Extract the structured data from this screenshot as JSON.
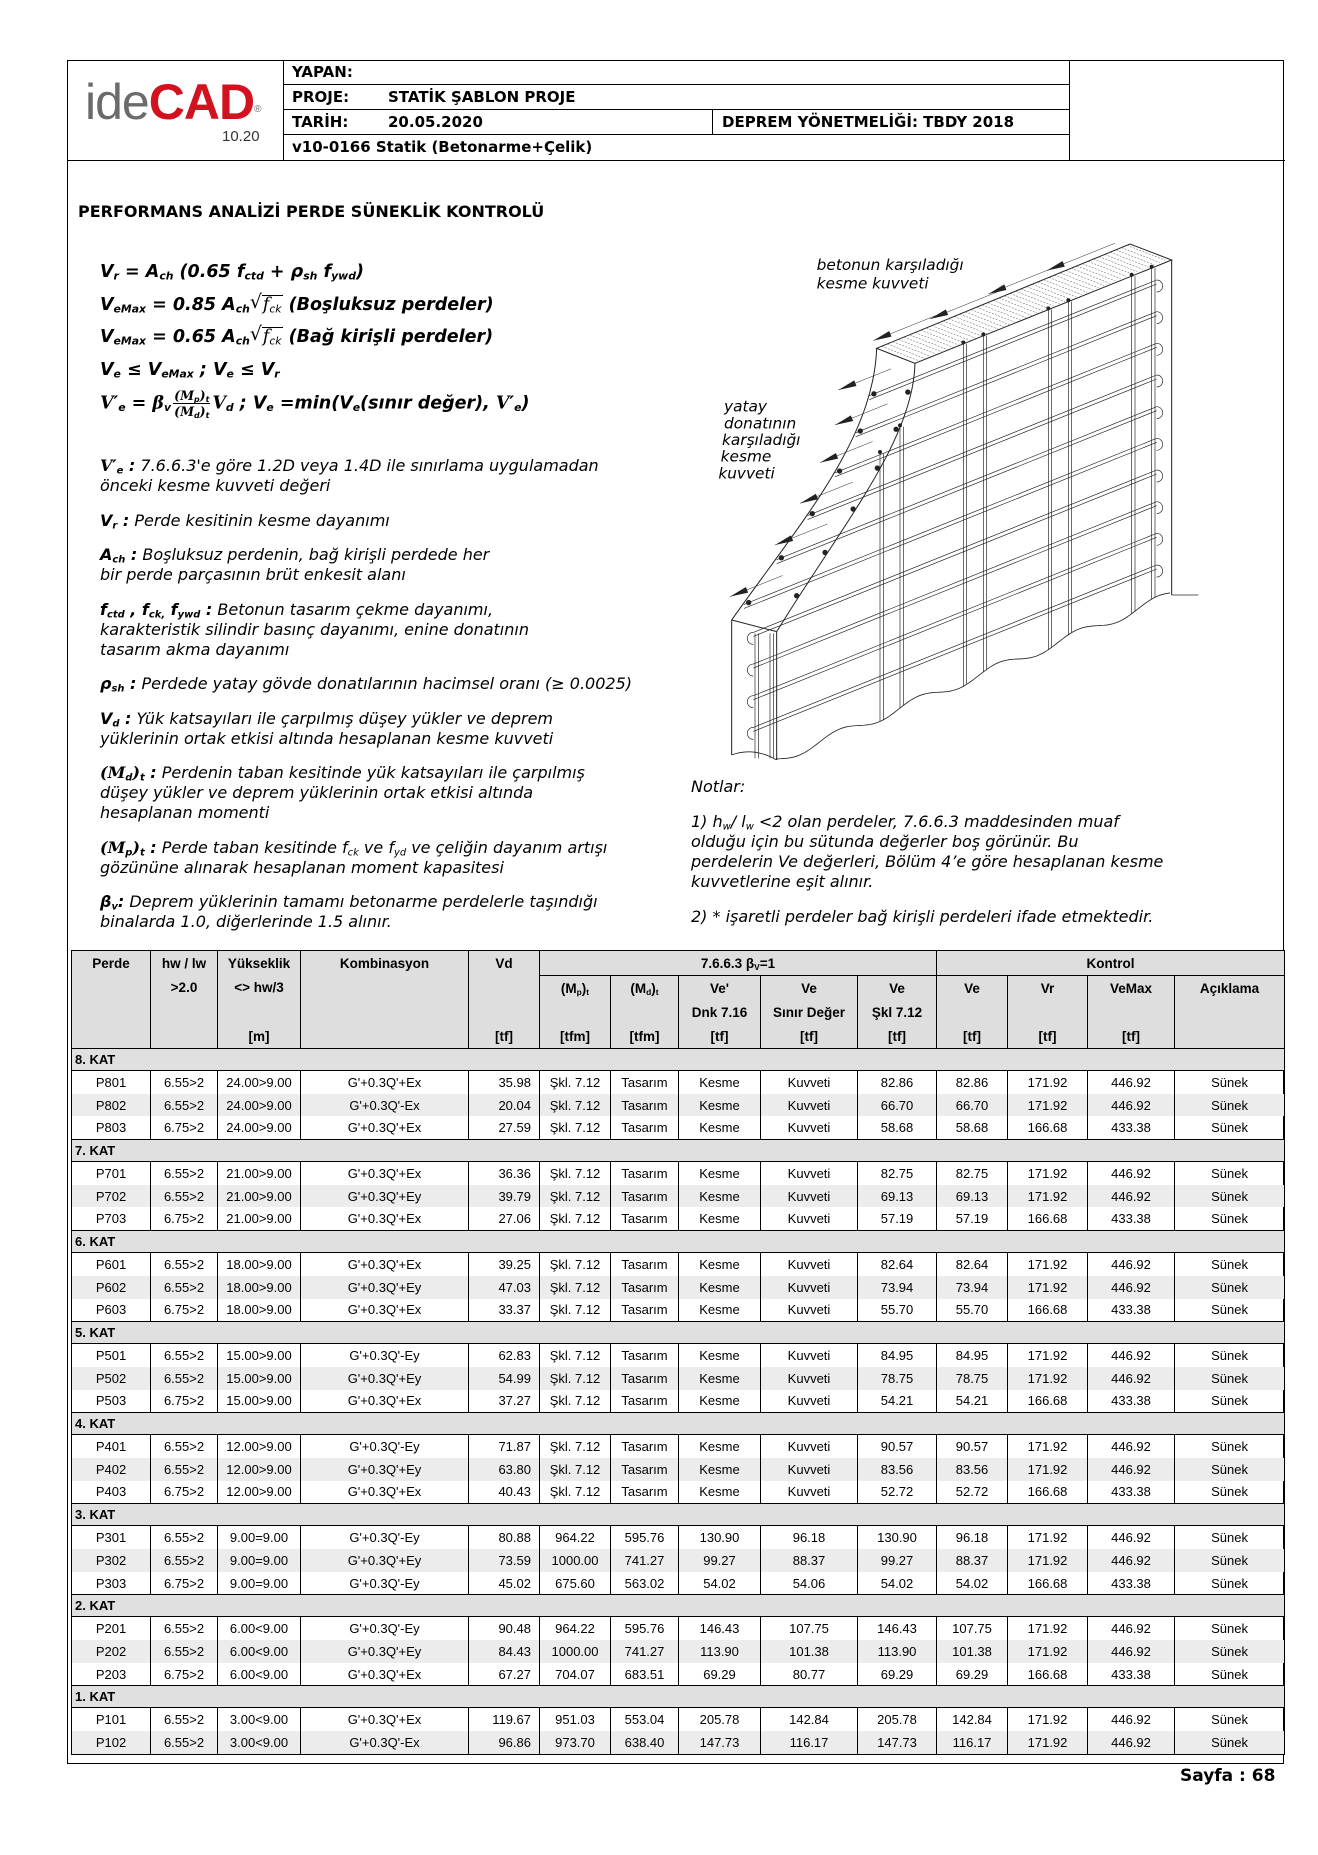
{
  "header": {
    "logo": {
      "text_a": "ide",
      "text_b": "CAD",
      "reg": "®",
      "version": "10.20"
    },
    "yapan_label": "YAPAN:",
    "proje_label": "PROJE:",
    "proje_value": "STATİK ŞABLON PROJE",
    "tarih_label": "TARİH:",
    "tarih_value": "20.05.2020",
    "deprem": "DEPREM YÖNETMELİĞİ: TBDY 2018",
    "version": "v10-0166 Statik (Betonarme+Çelik)"
  },
  "title": "PERFORMANS ANALİZİ PERDE SÜNEKLİK KONTROLÜ",
  "formulas": [
    [
      {
        "t": "V"
      },
      {
        "b": "r"
      },
      {
        "t": " = A"
      },
      {
        "b": "ch"
      },
      {
        "t": " (0.65 f"
      },
      {
        "b": "ctd"
      },
      {
        "t": " + ρ"
      },
      {
        "b": "sh"
      },
      {
        "t": " f"
      },
      {
        "b": "ywd"
      },
      {
        "t": ")"
      }
    ],
    [
      {
        "t": "V"
      },
      {
        "b": "eMax"
      },
      {
        "t": " = 0.85 A"
      },
      {
        "b": "ch"
      },
      {
        "r": [
          {
            "m": "f"
          },
          {
            "b": "ck"
          }
        ]
      },
      {
        "t": " (Boşluksuz perdeler)"
      }
    ],
    [
      {
        "t": "V"
      },
      {
        "b": "eMax"
      },
      {
        "t": " = 0.65 A"
      },
      {
        "b": "ch"
      },
      {
        "r": [
          {
            "m": "f"
          },
          {
            "b": "ck"
          }
        ]
      },
      {
        "t": " (Bağ kirişli perdeler)"
      }
    ],
    [
      {
        "t": "V"
      },
      {
        "b": "e"
      },
      {
        "t": " ≤ V"
      },
      {
        "b": "eMax"
      },
      {
        "t": " ; V"
      },
      {
        "b": "e"
      },
      {
        "t": " ≤ V"
      },
      {
        "b": "r"
      }
    ],
    [
      {
        "m": "V′"
      },
      {
        "b": "e"
      },
      {
        "t": " = "
      },
      {
        "m": "β"
      },
      {
        "b": "v"
      },
      {
        "f": [
          [
            {
              "m": "(M"
            },
            {
              "b": "p"
            },
            {
              "m": ")"
            },
            {
              "b": "t"
            }
          ],
          [
            {
              "m": "(M"
            },
            {
              "b": "d"
            },
            {
              "m": ")"
            },
            {
              "b": "t"
            }
          ]
        ]
      },
      {
        "m": "V"
      },
      {
        "b": "d"
      },
      {
        "t": " ; V"
      },
      {
        "b": "e"
      },
      {
        "t": " =min(V"
      },
      {
        "b": "e"
      },
      {
        "t": "(sınır değer), "
      },
      {
        "m": "V′"
      },
      {
        "b": "e"
      },
      {
        "t": ")"
      }
    ]
  ],
  "definitions": [
    {
      "term": [
        {
          "m": "V′"
        },
        {
          "b": "e"
        },
        {
          "t": " :"
        }
      ],
      "desc": [
        {
          "t": " 7.6.6.3'e göre 1.2D veya 1.4D ile sınırlama uygulamadan\nönceki kesme kuvveti değeri"
        }
      ]
    },
    {
      "term": [
        {
          "t": "V"
        },
        {
          "b": "r"
        },
        {
          "t": " :"
        }
      ],
      "desc": [
        {
          "t": " Perde kesitinin kesme dayanımı"
        }
      ]
    },
    {
      "term": [
        {
          "t": "A"
        },
        {
          "b": "ch"
        },
        {
          "t": " :"
        }
      ],
      "desc": [
        {
          "t": "  Boşluksuz perdenin, bağ kirişli perdede her\nbir perde parçasının brüt enkesit alanı"
        }
      ]
    },
    {
      "term": [
        {
          "t": "f"
        },
        {
          "b": "ctd"
        },
        {
          "t": " , f"
        },
        {
          "b": "ck,"
        },
        {
          "t": " f"
        },
        {
          "b": "ywd"
        },
        {
          "t": " :"
        }
      ],
      "desc": [
        {
          "t": " Betonun tasarım çekme dayanımı,\nkarakteristik silindir basınç dayanımı, enine donatının\ntasarım akma dayanımı"
        }
      ]
    },
    {
      "term": [
        {
          "t": "ρ"
        },
        {
          "b": "sh"
        },
        {
          "t": " :"
        }
      ],
      "desc": [
        {
          "t": " Perdede yatay gövde donatılarının hacimsel oranı (≥ 0.0025)"
        }
      ]
    },
    {
      "term": [
        {
          "t": "V"
        },
        {
          "b": "d"
        },
        {
          "t": " :"
        }
      ],
      "desc": [
        {
          "t": " Yük katsayıları ile çarpılmış düşey yükler ve deprem\nyüklerinin ortak etkisi altında hesaplanan kesme kuvveti"
        }
      ]
    },
    {
      "term": [
        {
          "m": "(M"
        },
        {
          "b": "d"
        },
        {
          "m": ")"
        },
        {
          "b": "t"
        },
        {
          "t": " :"
        }
      ],
      "desc": [
        {
          "t": " Perdenin taban kesitinde yük katsayıları ile çarpılmış\ndüşey yükler ve deprem yüklerinin ortak etkisi altında\nhesaplanan momenti"
        }
      ]
    },
    {
      "term": [
        {
          "m": "(M"
        },
        {
          "b": "p"
        },
        {
          "m": ")"
        },
        {
          "b": "t"
        },
        {
          "t": " :"
        }
      ],
      "desc": [
        {
          "t": " Perde taban kesitinde f"
        },
        {
          "b": "ck"
        },
        {
          "t": "  ve f"
        },
        {
          "b": "yd"
        },
        {
          "t": " ve çeliğin dayanım artışı\ngözününe alınarak hesaplanan moment kapasitesi"
        }
      ]
    },
    {
      "term": [
        {
          "t": "β"
        },
        {
          "b": "v"
        },
        {
          "t": ":"
        }
      ],
      "desc": [
        {
          "t": " Deprem yüklerinin tamamı betonarme perdelerle taşındığı\nbinalarda 1.0, diğerlerinde 1.5 alınır."
        }
      ]
    }
  ],
  "figure": {
    "label_concrete": [
      "betonun karşıladığı",
      "kesme kuvveti"
    ],
    "label_rebar": [
      "yatay",
      "donatının",
      "karşıladığı",
      "kesme",
      "kuvveti"
    ]
  },
  "notes": {
    "title": "Notlar:",
    "items": [
      [
        {
          "t": "1) h"
        },
        {
          "b": "w"
        },
        {
          "t": "/ l"
        },
        {
          "b": "w"
        },
        {
          "t": " <2 olan perdeler, 7.6.6.3 maddesinden muaf\nolduğu için bu sütunda değerler boş görünür. Bu\nperdelerin Ve değerleri, Bölüm 4’e göre hesaplanan kesme\nkuvvetlerine eşit alınır."
        }
      ],
      [
        {
          "t": "2) * işaretli perdeler bağ kirişli perdeleri ifade etmektedir."
        }
      ]
    ]
  },
  "table": {
    "group_7663": [
      {
        "t": "7.6.6.3 β"
      },
      {
        "b": "V"
      },
      {
        "t": "=1"
      }
    ],
    "group_kontrol": "Kontrol",
    "columns": [
      [
        "Perde",
        "",
        "",
        ""
      ],
      [
        "hw / lw",
        ">2.0",
        "",
        ""
      ],
      [
        "Yükseklik",
        "<> hw/3",
        "",
        "[m]"
      ],
      [
        "Kombinasyon",
        "",
        "",
        ""
      ],
      [
        "Vd",
        "",
        "",
        "[tf]"
      ],
      [
        "",
        [
          {
            "t": "(M"
          },
          {
            "b": "p"
          },
          {
            "t": ")"
          },
          {
            "b": "t"
          }
        ],
        "",
        "[tfm]"
      ],
      [
        "",
        [
          {
            "t": "(M"
          },
          {
            "b": "d"
          },
          {
            "t": ")"
          },
          {
            "b": "t"
          }
        ],
        "",
        "[tfm]"
      ],
      [
        "",
        "Ve'",
        "Dnk 7.16",
        "[tf]"
      ],
      [
        "",
        "Ve",
        "Sınır Değer",
        "[tf]"
      ],
      [
        "",
        "Ve",
        "Şkl 7.12",
        "[tf]"
      ],
      [
        "",
        "Ve",
        "",
        "[tf]"
      ],
      [
        "",
        "Vr",
        "",
        "[tf]"
      ],
      [
        "",
        "VeMax",
        "",
        "[tf]"
      ],
      [
        "",
        "Açıklama",
        "",
        ""
      ]
    ],
    "groups": [
      {
        "label": "8. KAT",
        "rows": [
          [
            "P801",
            "6.55>2",
            "24.00>9.00",
            "G'+0.3Q'+Ex",
            "35.98",
            "Şkl. 7.12",
            "Tasarım",
            "Kesme",
            "Kuvveti",
            "82.86",
            "82.86",
            "171.92",
            "446.92",
            "Sünek"
          ],
          [
            "P802",
            "6.55>2",
            "24.00>9.00",
            "G'+0.3Q'-Ex",
            "20.04",
            "Şkl. 7.12",
            "Tasarım",
            "Kesme",
            "Kuvveti",
            "66.70",
            "66.70",
            "171.92",
            "446.92",
            "Sünek"
          ],
          [
            "P803",
            "6.75>2",
            "24.00>9.00",
            "G'+0.3Q'+Ex",
            "27.59",
            "Şkl. 7.12",
            "Tasarım",
            "Kesme",
            "Kuvveti",
            "58.68",
            "58.68",
            "166.68",
            "433.38",
            "Sünek"
          ]
        ]
      },
      {
        "label": "7. KAT",
        "rows": [
          [
            "P701",
            "6.55>2",
            "21.00>9.00",
            "G'+0.3Q'+Ex",
            "36.36",
            "Şkl. 7.12",
            "Tasarım",
            "Kesme",
            "Kuvveti",
            "82.75",
            "82.75",
            "171.92",
            "446.92",
            "Sünek"
          ],
          [
            "P702",
            "6.55>2",
            "21.00>9.00",
            "G'+0.3Q'+Ey",
            "39.79",
            "Şkl. 7.12",
            "Tasarım",
            "Kesme",
            "Kuvveti",
            "69.13",
            "69.13",
            "171.92",
            "446.92",
            "Sünek"
          ],
          [
            "P703",
            "6.75>2",
            "21.00>9.00",
            "G'+0.3Q'+Ex",
            "27.06",
            "Şkl. 7.12",
            "Tasarım",
            "Kesme",
            "Kuvveti",
            "57.19",
            "57.19",
            "166.68",
            "433.38",
            "Sünek"
          ]
        ]
      },
      {
        "label": "6. KAT",
        "rows": [
          [
            "P601",
            "6.55>2",
            "18.00>9.00",
            "G'+0.3Q'+Ex",
            "39.25",
            "Şkl. 7.12",
            "Tasarım",
            "Kesme",
            "Kuvveti",
            "82.64",
            "82.64",
            "171.92",
            "446.92",
            "Sünek"
          ],
          [
            "P602",
            "6.55>2",
            "18.00>9.00",
            "G'+0.3Q'+Ey",
            "47.03",
            "Şkl. 7.12",
            "Tasarım",
            "Kesme",
            "Kuvveti",
            "73.94",
            "73.94",
            "171.92",
            "446.92",
            "Sünek"
          ],
          [
            "P603",
            "6.75>2",
            "18.00>9.00",
            "G'+0.3Q'+Ex",
            "33.37",
            "Şkl. 7.12",
            "Tasarım",
            "Kesme",
            "Kuvveti",
            "55.70",
            "55.70",
            "166.68",
            "433.38",
            "Sünek"
          ]
        ]
      },
      {
        "label": "5. KAT",
        "rows": [
          [
            "P501",
            "6.55>2",
            "15.00>9.00",
            "G'+0.3Q'-Ey",
            "62.83",
            "Şkl. 7.12",
            "Tasarım",
            "Kesme",
            "Kuvveti",
            "84.95",
            "84.95",
            "171.92",
            "446.92",
            "Sünek"
          ],
          [
            "P502",
            "6.55>2",
            "15.00>9.00",
            "G'+0.3Q'+Ey",
            "54.99",
            "Şkl. 7.12",
            "Tasarım",
            "Kesme",
            "Kuvveti",
            "78.75",
            "78.75",
            "171.92",
            "446.92",
            "Sünek"
          ],
          [
            "P503",
            "6.75>2",
            "15.00>9.00",
            "G'+0.3Q'+Ex",
            "37.27",
            "Şkl. 7.12",
            "Tasarım",
            "Kesme",
            "Kuvveti",
            "54.21",
            "54.21",
            "166.68",
            "433.38",
            "Sünek"
          ]
        ]
      },
      {
        "label": "4. KAT",
        "rows": [
          [
            "P401",
            "6.55>2",
            "12.00>9.00",
            "G'+0.3Q'-Ey",
            "71.87",
            "Şkl. 7.12",
            "Tasarım",
            "Kesme",
            "Kuvveti",
            "90.57",
            "90.57",
            "171.92",
            "446.92",
            "Sünek"
          ],
          [
            "P402",
            "6.55>2",
            "12.00>9.00",
            "G'+0.3Q'+Ey",
            "63.80",
            "Şkl. 7.12",
            "Tasarım",
            "Kesme",
            "Kuvveti",
            "83.56",
            "83.56",
            "171.92",
            "446.92",
            "Sünek"
          ],
          [
            "P403",
            "6.75>2",
            "12.00>9.00",
            "G'+0.3Q'+Ex",
            "40.43",
            "Şkl. 7.12",
            "Tasarım",
            "Kesme",
            "Kuvveti",
            "52.72",
            "52.72",
            "166.68",
            "433.38",
            "Sünek"
          ]
        ]
      },
      {
        "label": "3. KAT",
        "rows": [
          [
            "P301",
            "6.55>2",
            "9.00=9.00",
            "G'+0.3Q'-Ey",
            "80.88",
            "964.22",
            "595.76",
            "130.90",
            "96.18",
            "130.90",
            "96.18",
            "171.92",
            "446.92",
            "Sünek"
          ],
          [
            "P302",
            "6.55>2",
            "9.00=9.00",
            "G'+0.3Q'+Ey",
            "73.59",
            "1000.00",
            "741.27",
            "99.27",
            "88.37",
            "99.27",
            "88.37",
            "171.92",
            "446.92",
            "Sünek"
          ],
          [
            "P303",
            "6.75>2",
            "9.00=9.00",
            "G'+0.3Q'-Ey",
            "45.02",
            "675.60",
            "563.02",
            "54.02",
            "54.06",
            "54.02",
            "54.02",
            "166.68",
            "433.38",
            "Sünek"
          ]
        ]
      },
      {
        "label": "2. KAT",
        "rows": [
          [
            "P201",
            "6.55>2",
            "6.00<9.00",
            "G'+0.3Q'-Ey",
            "90.48",
            "964.22",
            "595.76",
            "146.43",
            "107.75",
            "146.43",
            "107.75",
            "171.92",
            "446.92",
            "Sünek"
          ],
          [
            "P202",
            "6.55>2",
            "6.00<9.00",
            "G'+0.3Q'+Ey",
            "84.43",
            "1000.00",
            "741.27",
            "113.90",
            "101.38",
            "113.90",
            "101.38",
            "171.92",
            "446.92",
            "Sünek"
          ],
          [
            "P203",
            "6.75>2",
            "6.00<9.00",
            "G'+0.3Q'+Ex",
            "67.27",
            "704.07",
            "683.51",
            "69.29",
            "80.77",
            "69.29",
            "69.29",
            "166.68",
            "433.38",
            "Sünek"
          ]
        ]
      },
      {
        "label": "1. KAT",
        "rows": [
          [
            "P101",
            "6.55>2",
            "3.00<9.00",
            "G'+0.3Q'+Ex",
            "119.67",
            "951.03",
            "553.04",
            "205.78",
            "142.84",
            "205.78",
            "142.84",
            "171.92",
            "446.92",
            "Sünek"
          ],
          [
            "P102",
            "6.55>2",
            "3.00<9.00",
            "G'+0.3Q'-Ex",
            "96.86",
            "973.70",
            "638.40",
            "147.73",
            "116.17",
            "147.73",
            "116.17",
            "171.92",
            "446.92",
            "Sünek"
          ]
        ]
      }
    ]
  },
  "footer": {
    "page": "Sayfa : 68"
  },
  "colors": {
    "logo_red": "#d2121f",
    "logo_gray": "#6b6b6b",
    "header_bg": "#dedede",
    "group_bg": "#e0e0e0",
    "stripe_bg": "#ececec"
  }
}
